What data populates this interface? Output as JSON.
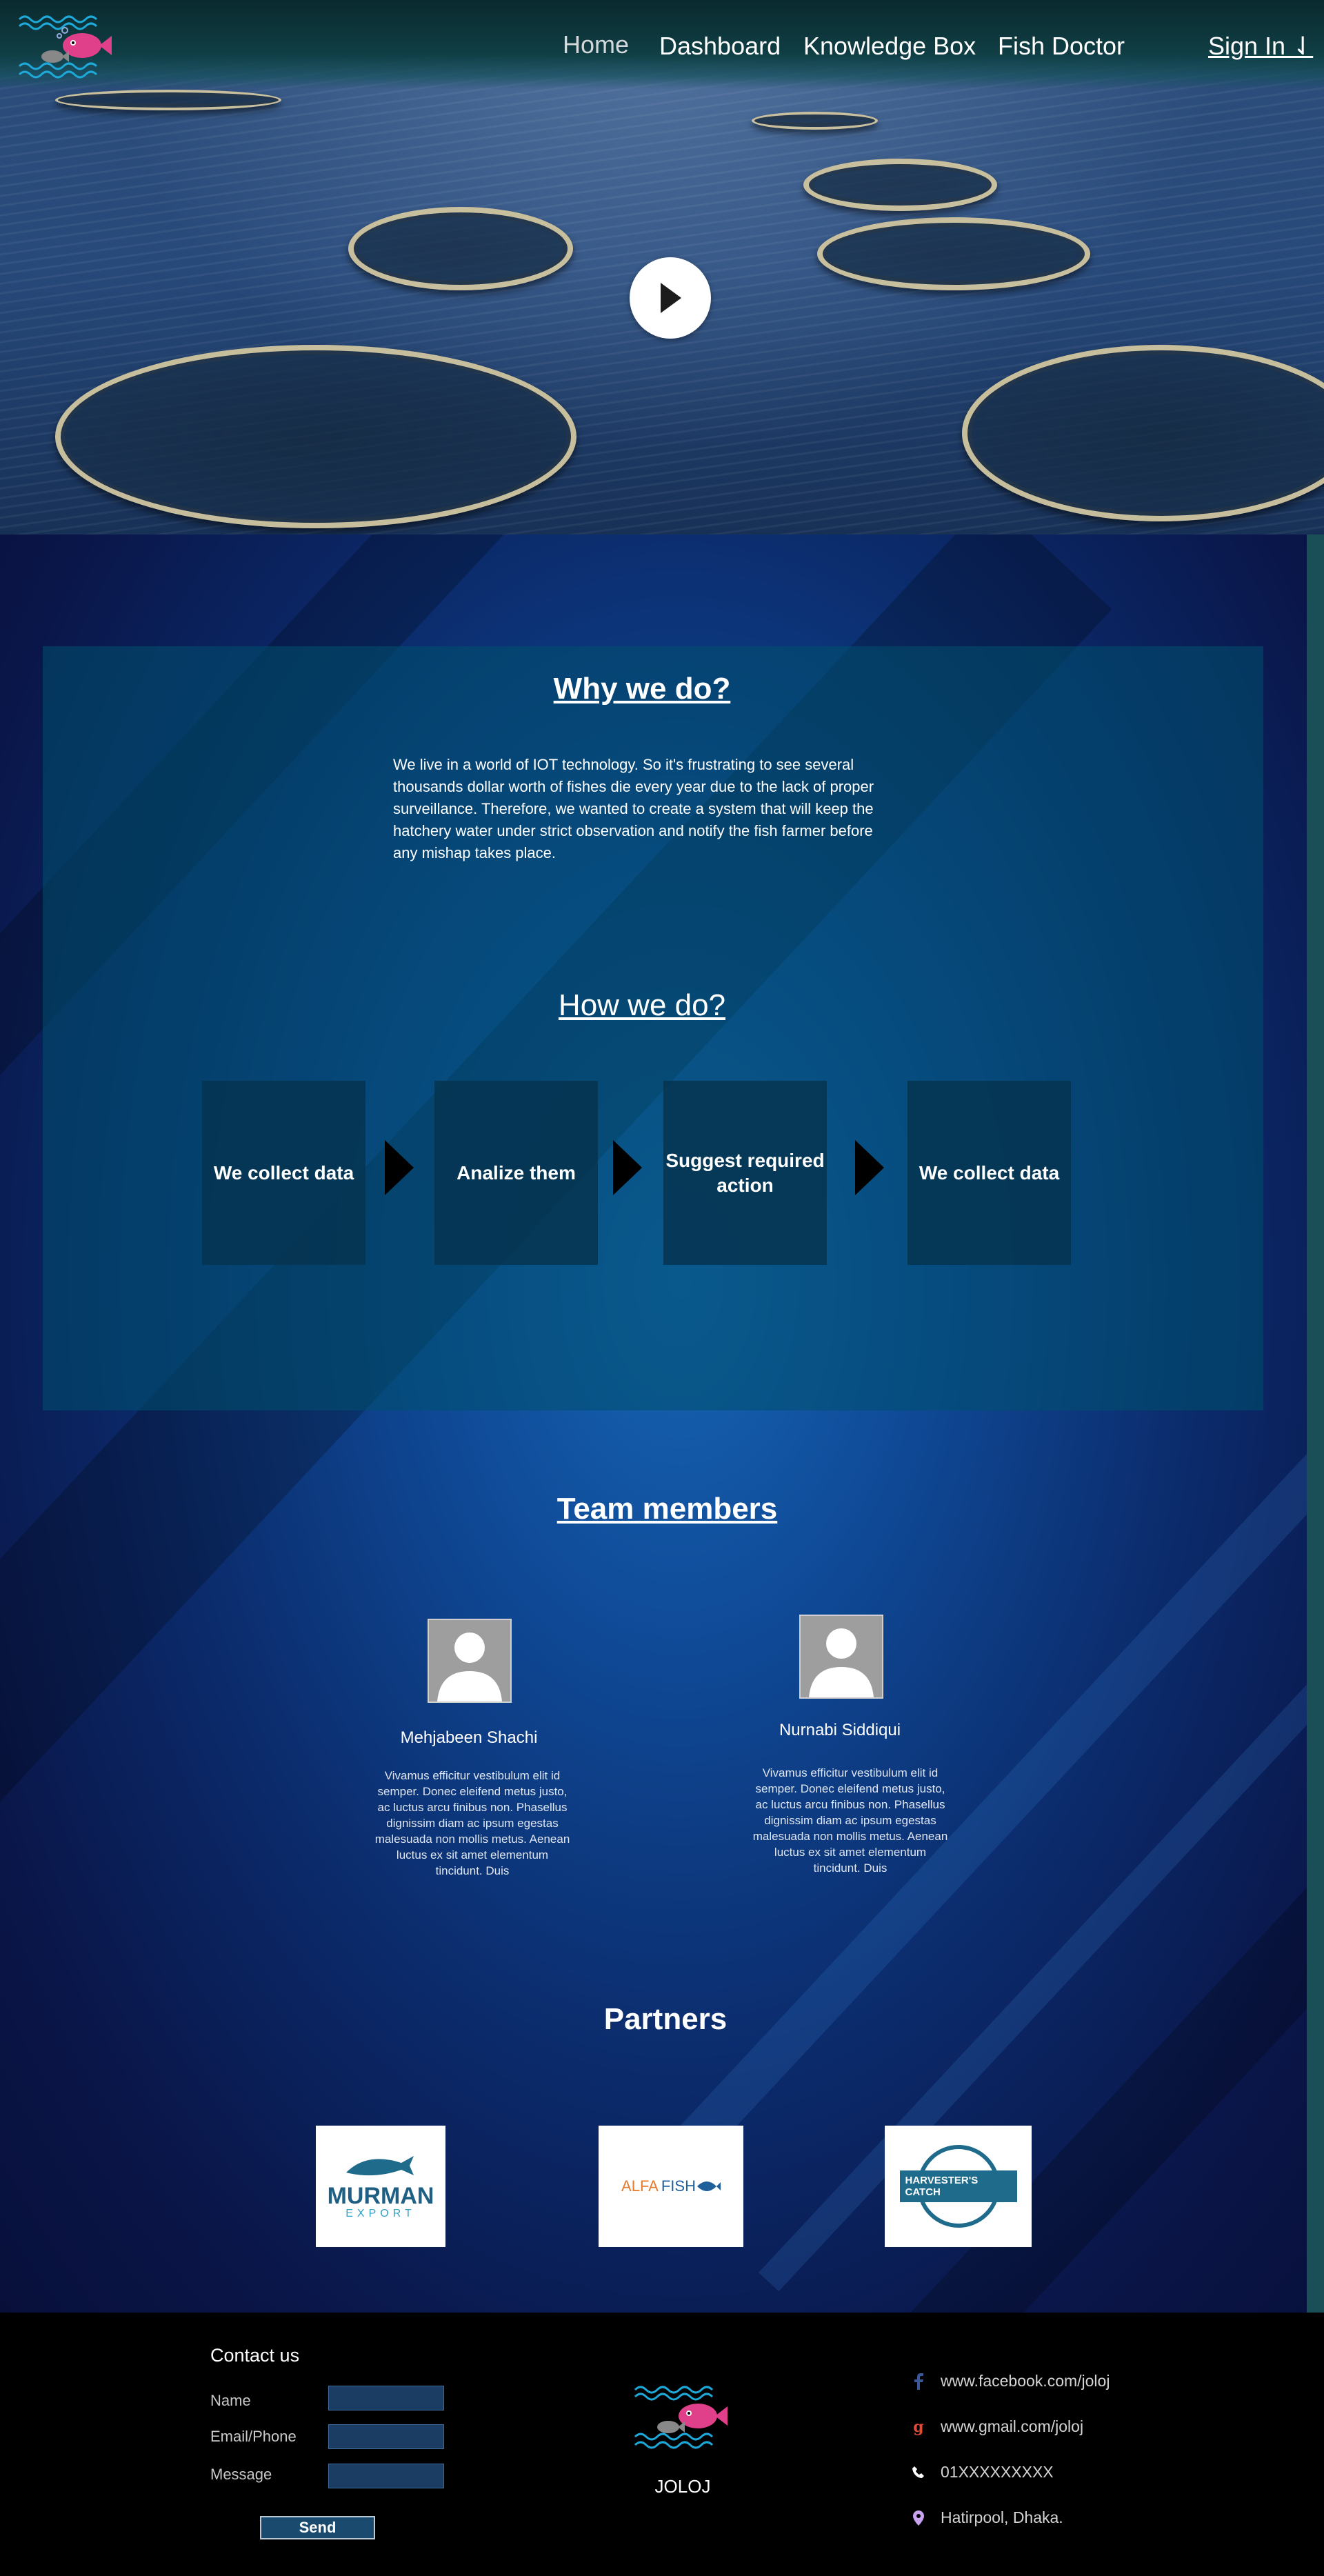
{
  "nav": {
    "items": [
      {
        "label": "Home",
        "active": true
      },
      {
        "label": "Dashboard",
        "active": false
      },
      {
        "label": "Knowledge Box",
        "active": false
      },
      {
        "label": "Fish Doctor",
        "active": false
      }
    ],
    "signin": "Sign In ⇃"
  },
  "hero": {
    "play_icon": "play-icon"
  },
  "why": {
    "title": "Why we do?",
    "text": "We live in a world of IOT technology. So it's frustrating to see several thousands dollar worth of fishes die every year due to the lack of proper surveillance. Therefore, we wanted to create a system that will keep the hatchery water under strict observation and notify the fish farmer before any mishap takes place."
  },
  "how": {
    "title": "How we do?",
    "steps": [
      "We collect data",
      "Analize them",
      "Suggest required action",
      "We collect data"
    ]
  },
  "team": {
    "title": "Team members",
    "members": [
      {
        "name": "Mehjabeen Shachi",
        "bio": "Vivamus efficitur vestibulum elit id semper. Donec eleifend metus justo, ac luctus arcu finibus non. Phasellus dignissim diam ac ipsum egestas malesuada non mollis metus. Aenean luctus ex sit amet elementum tincidunt. Duis"
      },
      {
        "name": "Nurnabi Siddiqui",
        "bio": "Vivamus efficitur vestibulum elit id semper. Donec eleifend metus justo, ac luctus arcu finibus non. Phasellus dignissim diam ac ipsum egestas malesuada non mollis metus. Aenean luctus ex sit amet elementum tincidunt. Duis"
      }
    ]
  },
  "partners": {
    "title": "Partners",
    "logos": [
      {
        "name": "MURMAN",
        "sub": "EXPORT"
      },
      {
        "name": "ALFA",
        "name2": "FISH"
      },
      {
        "name": "HARVESTER'S CATCH"
      }
    ]
  },
  "contact": {
    "title": "Contact us",
    "fields": [
      "Name",
      "Email/Phone",
      "Message"
    ],
    "send": "Send"
  },
  "brand": "JOLOJ",
  "info": {
    "facebook": "www.facebook.com/joloj",
    "gmail": "www.gmail.com/joloj",
    "phone": "01XXXXXXXXX",
    "address": "Hatirpool, Dhaka."
  },
  "colors": {
    "accent": "#1665b4",
    "header": "#0f3e44",
    "footer": "#000000"
  }
}
